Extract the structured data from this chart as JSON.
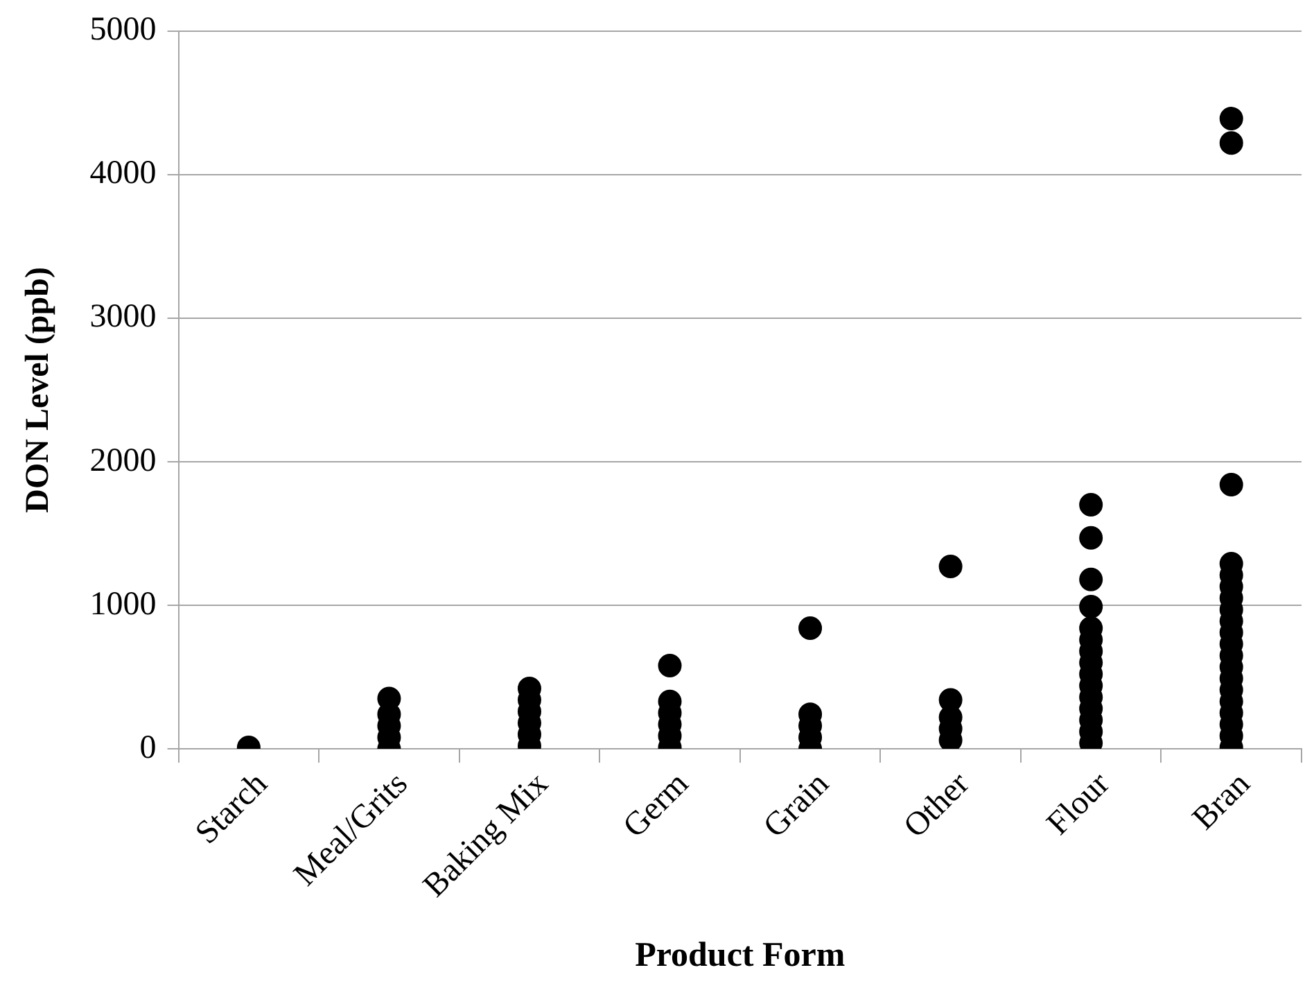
{
  "chart_data": {
    "type": "scatter",
    "xlabel": "Product Form",
    "ylabel": "DON Level (ppb)",
    "categories": [
      "Starch",
      "Meal/Grits",
      "Baking Mix",
      "Germ",
      "Grain",
      "Other",
      "Flour",
      "Bran"
    ],
    "series": [
      {
        "color": "#000000",
        "x": [
          "Starch",
          "Meal/Grits",
          "Meal/Grits",
          "Meal/Grits",
          "Meal/Grits",
          "Meal/Grits",
          "Baking Mix",
          "Baking Mix",
          "Baking Mix",
          "Baking Mix",
          "Baking Mix",
          "Baking Mix",
          "Germ",
          "Germ",
          "Germ",
          "Germ",
          "Germ",
          "Germ",
          "Grain",
          "Grain",
          "Grain",
          "Grain",
          "Grain",
          "Other",
          "Other",
          "Other",
          "Other",
          "Other",
          "Flour",
          "Flour",
          "Flour",
          "Flour",
          "Flour",
          "Flour",
          "Flour",
          "Flour",
          "Flour",
          "Flour",
          "Flour",
          "Flour",
          "Flour",
          "Flour",
          "Flour",
          "Bran",
          "Bran",
          "Bran",
          "Bran",
          "Bran",
          "Bran",
          "Bran",
          "Bran",
          "Bran",
          "Bran",
          "Bran",
          "Bran",
          "Bran",
          "Bran",
          "Bran",
          "Bran",
          "Bran",
          "Bran",
          "Bran",
          "Bran"
        ],
        "values": [
          10,
          350,
          240,
          160,
          80,
          0,
          420,
          340,
          260,
          180,
          100,
          20,
          580,
          330,
          250,
          170,
          90,
          10,
          840,
          240,
          160,
          80,
          0,
          1270,
          340,
          220,
          140,
          60,
          1700,
          1470,
          1180,
          990,
          840,
          760,
          680,
          600,
          520,
          440,
          360,
          280,
          200,
          120,
          40,
          4390,
          4220,
          1840,
          1290,
          1210,
          1130,
          1050,
          970,
          890,
          810,
          730,
          650,
          570,
          490,
          410,
          330,
          250,
          170,
          90,
          10
        ]
      }
    ],
    "ylim": [
      0,
      5000
    ],
    "yticks": [
      0,
      1000,
      2000,
      3000,
      4000,
      5000
    ],
    "grid": "y",
    "legend": false,
    "marker": "circle"
  }
}
